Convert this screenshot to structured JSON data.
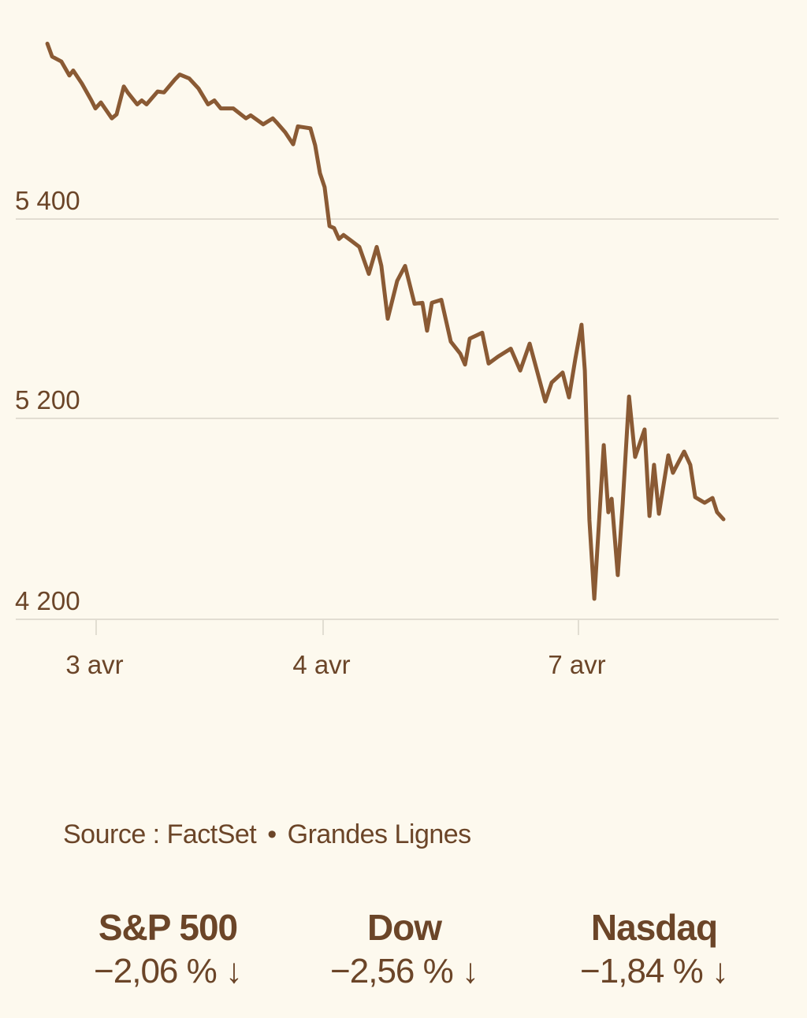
{
  "chart_data": {
    "type": "line",
    "title": "",
    "xlabel": "",
    "ylabel": "",
    "grid": true,
    "colors": {
      "line": "#8a5a34",
      "text": "#6b4528",
      "grid": "#d9d4c8",
      "background": "#fdf9ee"
    },
    "y_ticks": [
      {
        "value": 5400,
        "label": "5 400"
      },
      {
        "value": 5200,
        "label": "5 200"
      },
      {
        "value": 4200,
        "label": "4 200"
      }
    ],
    "x_ticks": [
      {
        "value": 0,
        "label": "3 avr"
      },
      {
        "value": 1,
        "label": "4 avr"
      },
      {
        "value": 2,
        "label": "7 avr"
      }
    ],
    "series": [
      {
        "points": [
          [
            -0.215,
            5576
          ],
          [
            -0.194,
            5563
          ],
          [
            -0.153,
            5558
          ],
          [
            -0.118,
            5544
          ],
          [
            -0.101,
            5549
          ],
          [
            -0.063,
            5536
          ],
          [
            -0.021,
            5519
          ],
          [
            -0.003,
            5511
          ],
          [
            0.021,
            5517
          ],
          [
            0.069,
            5501
          ],
          [
            0.09,
            5505
          ],
          [
            0.122,
            5533
          ],
          [
            0.139,
            5527
          ],
          [
            0.181,
            5515
          ],
          [
            0.201,
            5519
          ],
          [
            0.222,
            5515
          ],
          [
            0.271,
            5528
          ],
          [
            0.299,
            5527
          ],
          [
            0.347,
            5540
          ],
          [
            0.368,
            5545
          ],
          [
            0.41,
            5541
          ],
          [
            0.451,
            5531
          ],
          [
            0.493,
            5515
          ],
          [
            0.521,
            5519
          ],
          [
            0.549,
            5511
          ],
          [
            0.604,
            5511
          ],
          [
            0.66,
            5501
          ],
          [
            0.681,
            5504
          ],
          [
            0.736,
            5495
          ],
          [
            0.778,
            5501
          ],
          [
            0.799,
            5496
          ],
          [
            0.833,
            5487
          ],
          [
            0.868,
            5475
          ],
          [
            0.889,
            5493
          ],
          [
            0.944,
            5491
          ],
          [
            0.965,
            5474
          ],
          [
            0.986,
            5446
          ],
          [
            1.006,
            5432
          ],
          [
            1.025,
            5393
          ],
          [
            1.043,
            5391
          ],
          [
            1.062,
            5380
          ],
          [
            1.08,
            5384
          ],
          [
            1.111,
            5378
          ],
          [
            1.142,
            5372
          ],
          [
            1.179,
            5345
          ],
          [
            1.21,
            5372
          ],
          [
            1.228,
            5353
          ],
          [
            1.253,
            5300
          ],
          [
            1.29,
            5338
          ],
          [
            1.321,
            5353
          ],
          [
            1.358,
            5315
          ],
          [
            1.389,
            5316
          ],
          [
            1.407,
            5288
          ],
          [
            1.426,
            5316
          ],
          [
            1.463,
            5319
          ],
          [
            1.5,
            5277
          ],
          [
            1.537,
            5265
          ],
          [
            1.556,
            5254
          ],
          [
            1.574,
            5280
          ],
          [
            1.623,
            5286
          ],
          [
            1.648,
            5255
          ],
          [
            1.685,
            5262
          ],
          [
            1.735,
            5270
          ],
          [
            1.772,
            5248
          ],
          [
            1.809,
            5275
          ],
          [
            1.87,
            5217
          ],
          [
            1.895,
            5236
          ],
          [
            1.938,
            5246
          ],
          [
            1.963,
            5221
          ],
          [
            1.988,
            5260
          ],
          [
            2.012,
            5294
          ],
          [
            2.025,
            5248
          ],
          [
            2.043,
            4694
          ],
          [
            2.062,
            4302
          ],
          [
            2.099,
            5067
          ],
          [
            2.117,
            4733
          ],
          [
            2.13,
            4800
          ],
          [
            2.154,
            4420
          ],
          [
            2.173,
            4773
          ],
          [
            2.198,
            5222
          ],
          [
            2.222,
            5008
          ],
          [
            2.259,
            5145
          ],
          [
            2.278,
            4714
          ],
          [
            2.296,
            4969
          ],
          [
            2.315,
            4725
          ],
          [
            2.352,
            5016
          ],
          [
            2.37,
            4929
          ],
          [
            2.414,
            5035
          ],
          [
            2.438,
            4969
          ],
          [
            2.457,
            4808
          ],
          [
            2.494,
            4780
          ],
          [
            2.525,
            4804
          ],
          [
            2.543,
            4733
          ],
          [
            2.568,
            4698
          ]
        ]
      }
    ]
  },
  "footer": {
    "source_label": "Source : FactSet",
    "separator": "•",
    "publisher": "Grandes Lignes"
  },
  "stats": [
    {
      "name": "S&P 500",
      "change": "−2,06 % ↓"
    },
    {
      "name": "Dow",
      "change": "−2,56 % ↓"
    },
    {
      "name": "Nasdaq",
      "change": "−1,84 % ↓"
    }
  ]
}
